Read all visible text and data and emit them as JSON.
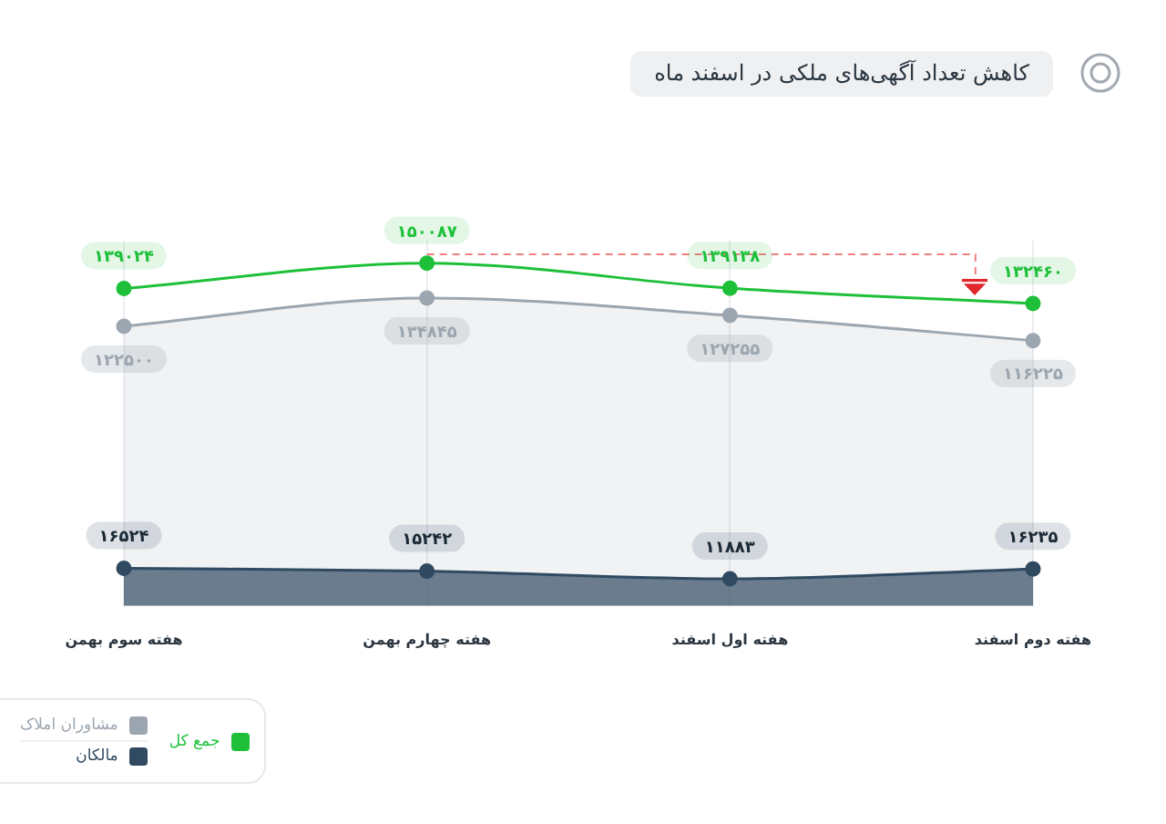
{
  "chart_data": {
    "type": "line",
    "title": "کاهش تعداد آگهی‌های ملکی در اسفند ماه",
    "categories": [
      "هفته سوم بهمن",
      "هفته چهارم بهمن",
      "هفته اول اسفند",
      "هفته دوم اسفند"
    ],
    "series": [
      {
        "name": "جمع کل",
        "type": "line",
        "color": "#1ec03a",
        "values": [
          139024,
          150087,
          139138,
          132460
        ],
        "value_labels": [
          "۱۳۹۰۲۴",
          "۱۵۰۰۸۷",
          "۱۳۹۱۳۸",
          "۱۳۲۴۶۰"
        ]
      },
      {
        "name": "مشاوران املاک",
        "type": "area",
        "color": "#9ca6b0",
        "values": [
          122500,
          134845,
          127255,
          116225
        ],
        "value_labels": [
          "۱۲۲۵۰۰",
          "۱۳۴۸۴۵",
          "۱۲۷۲۵۵",
          "۱۱۶۲۲۵"
        ]
      },
      {
        "name": "مالکان",
        "type": "area",
        "color": "#304a61",
        "values": [
          16524,
          15242,
          11883,
          16235
        ],
        "value_labels": [
          "۱۶۵۲۴",
          "۱۵۲۴۲",
          "۱۱۸۸۳",
          "۱۶۲۳۵"
        ]
      }
    ],
    "ylim": [
      0,
      160000
    ],
    "ref_lines": [
      {
        "axis": "y",
        "value": 154000,
        "color": "#f08080",
        "line_style": "dashed"
      }
    ],
    "grid": "x",
    "legend": "bottom left",
    "tick_labels": "x",
    "marker": "circle"
  }
}
